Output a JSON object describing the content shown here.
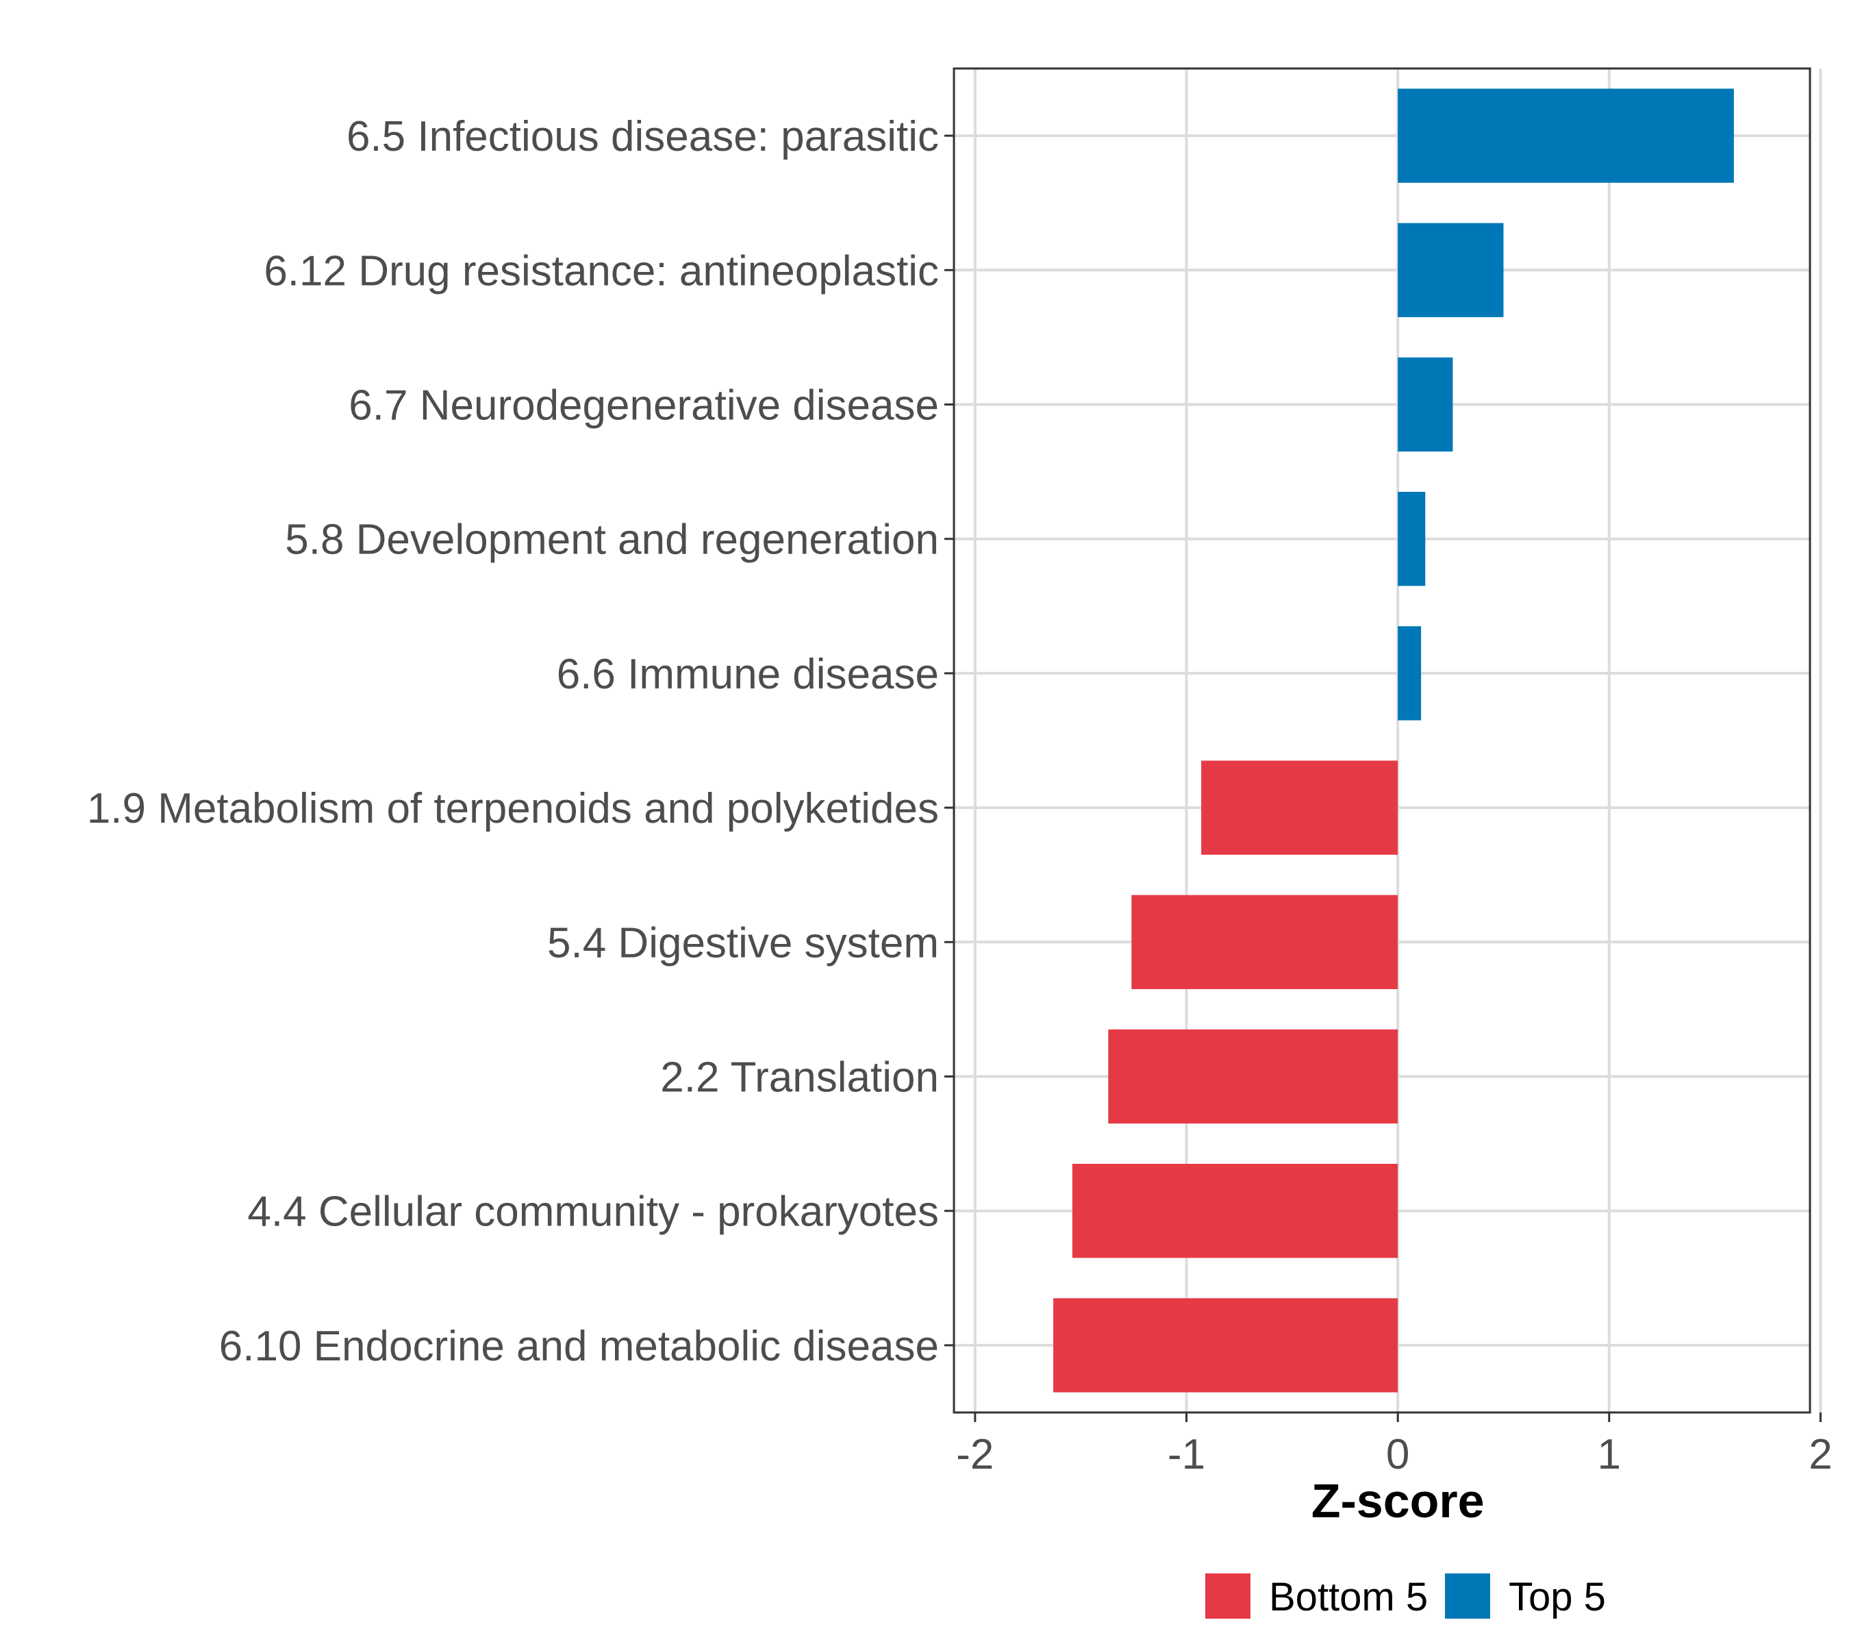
{
  "chart_data": {
    "type": "bar",
    "orientation": "horizontal",
    "title": "",
    "xlabel": "Z-score",
    "ylabel": "",
    "xlim": [
      -2.1,
      1.95
    ],
    "xticks": [
      -2,
      -1,
      0,
      1,
      2
    ],
    "xtick_labels": [
      "-2",
      "-1",
      "0",
      "1",
      "2"
    ],
    "grid": true,
    "legend_position": "bottom",
    "categories": [
      "6.5 Infectious disease: parasitic",
      "6.12 Drug resistance: antineoplastic",
      "6.7 Neurodegenerative disease",
      "5.8 Development and regeneration",
      "6.6 Immune disease",
      "1.9 Metabolism of terpenoids and polyketides",
      "5.4 Digestive system",
      "2.2 Translation",
      "4.4 Cellular community - prokaryotes",
      "6.10 Endocrine and metabolic disease"
    ],
    "values": [
      1.59,
      0.5,
      0.26,
      0.13,
      0.11,
      -0.93,
      -1.26,
      -1.37,
      -1.54,
      -1.63
    ],
    "groups": [
      "Top 5",
      "Top 5",
      "Top 5",
      "Top 5",
      "Top 5",
      "Bottom 5",
      "Bottom 5",
      "Bottom 5",
      "Bottom 5",
      "Bottom 5"
    ],
    "legend": [
      {
        "name": "Bottom 5",
        "color": "#e63946"
      },
      {
        "name": "Top 5",
        "color": "#0077b6"
      }
    ]
  }
}
